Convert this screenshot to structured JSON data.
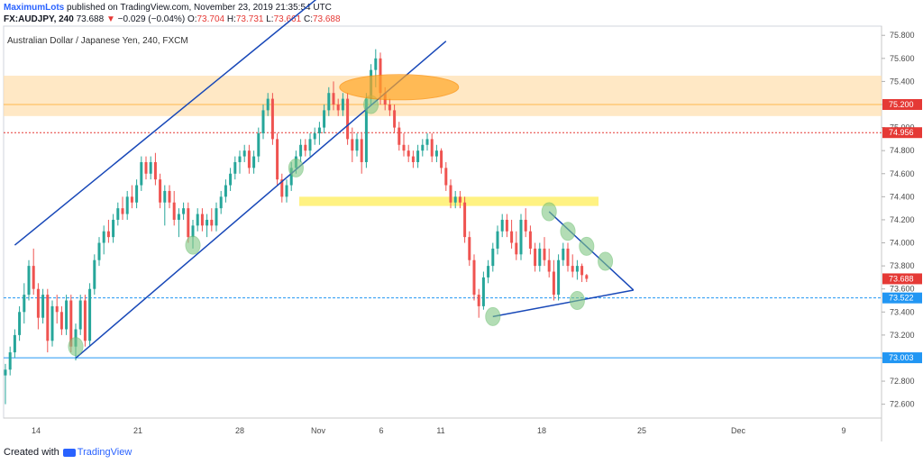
{
  "header": {
    "author": "MaximumLots",
    "published_text": "published on TradingView.com, November 23, 2019 21:35:54 UTC",
    "symbol": "FX:AUDJPY, 240",
    "last": "73.688",
    "change_arrow": "▼",
    "change": "−0.029 (−0.04%)",
    "o_label": "O:",
    "o": "73.704",
    "h_label": "H:",
    "h": "73.731",
    "l_label": "L:",
    "l": "73.661",
    "c_label": "C:",
    "c": "73.688"
  },
  "footer": {
    "created_with": "Created with",
    "brand": "TradingView"
  },
  "colors": {
    "up": "#26a69a",
    "down": "#ef5350",
    "trend": "#1848b8",
    "hline": "#2196f3",
    "red_line": "#e53935",
    "zone": "#ffe0b2",
    "support": "#ffee58",
    "ellipse_green": "#81c784",
    "ellipse_orange": "#ffa726"
  },
  "chart_data": {
    "type": "candlestick",
    "title": "Australian Dollar / Japanese Yen, 240, FXCM",
    "ylim": [
      72.48,
      75.88
    ],
    "x_ticks": [
      "14",
      "21",
      "28",
      "Nov",
      "6",
      "11",
      "18",
      "25",
      "Dec",
      "9"
    ],
    "y_ticks": [
      "72.600",
      "72.800",
      "73.000",
      "73.200",
      "73.400",
      "73.600",
      "73.800",
      "74.000",
      "74.200",
      "74.400",
      "74.600",
      "74.800",
      "75.000",
      "75.200",
      "75.400",
      "75.600",
      "75.800"
    ],
    "price_labels": [
      {
        "value": 75.2,
        "text": "75.200",
        "color": "#e53935"
      },
      {
        "value": 74.956,
        "text": "74.956",
        "color": "#e53935"
      },
      {
        "value": 73.688,
        "text": "73.688",
        "color": "#e53935"
      },
      {
        "value": 73.522,
        "text": "73.522",
        "color": "#2196f3"
      },
      {
        "value": 73.003,
        "text": "73.003",
        "color": "#2196f3"
      }
    ],
    "horizontal_lines": [
      {
        "value": 74.956,
        "style": "dotted",
        "color": "#e53935"
      },
      {
        "value": 73.522,
        "style": "dashed",
        "color": "#2196f3"
      },
      {
        "value": 73.003,
        "style": "solid",
        "color": "#2196f3"
      }
    ],
    "resistance_zone": [
      75.1,
      75.45
    ],
    "zone_midline": 75.2,
    "support_zone": [
      74.32,
      74.4
    ],
    "ohlc": [
      [
        72.85,
        72.95,
        72.6,
        72.9
      ],
      [
        72.9,
        73.1,
        72.85,
        73.05
      ],
      [
        73.05,
        73.25,
        73.0,
        73.2
      ],
      [
        73.2,
        73.45,
        73.15,
        73.4
      ],
      [
        73.4,
        73.65,
        73.3,
        73.55
      ],
      [
        73.55,
        73.85,
        73.5,
        73.8
      ],
      [
        73.8,
        73.95,
        73.55,
        73.6
      ],
      [
        73.6,
        73.65,
        73.25,
        73.35
      ],
      [
        73.35,
        73.6,
        73.3,
        73.55
      ],
      [
        73.55,
        73.6,
        73.05,
        73.15
      ],
      [
        73.15,
        73.5,
        73.1,
        73.45
      ],
      [
        73.45,
        73.55,
        73.3,
        73.4
      ],
      [
        73.4,
        73.45,
        73.2,
        73.25
      ],
      [
        73.25,
        73.55,
        73.2,
        73.5
      ],
      [
        73.5,
        73.55,
        73.05,
        73.1
      ],
      [
        73.1,
        73.3,
        72.98,
        73.25
      ],
      [
        73.25,
        73.55,
        73.2,
        73.5
      ],
      [
        73.5,
        73.55,
        73.1,
        73.15
      ],
      [
        73.15,
        73.65,
        73.1,
        73.6
      ],
      [
        73.6,
        73.9,
        73.55,
        73.85
      ],
      [
        73.85,
        74.05,
        73.8,
        74.0
      ],
      [
        74.0,
        74.15,
        73.9,
        74.1
      ],
      [
        74.1,
        74.2,
        74.0,
        74.05
      ],
      [
        74.05,
        74.25,
        74.0,
        74.2
      ],
      [
        74.2,
        74.35,
        74.15,
        74.3
      ],
      [
        74.3,
        74.4,
        74.2,
        74.25
      ],
      [
        74.25,
        74.45,
        74.2,
        74.4
      ],
      [
        74.4,
        74.5,
        74.3,
        74.35
      ],
      [
        74.35,
        74.55,
        74.3,
        74.5
      ],
      [
        74.5,
        74.75,
        74.45,
        74.7
      ],
      [
        74.7,
        74.75,
        74.55,
        74.6
      ],
      [
        74.6,
        74.75,
        74.55,
        74.7
      ],
      [
        74.7,
        74.78,
        74.5,
        74.55
      ],
      [
        74.55,
        74.6,
        74.3,
        74.35
      ],
      [
        74.35,
        74.5,
        74.15,
        74.45
      ],
      [
        74.45,
        74.5,
        74.3,
        74.35
      ],
      [
        74.35,
        74.45,
        74.15,
        74.2
      ],
      [
        74.2,
        74.3,
        74.05,
        74.25
      ],
      [
        74.25,
        74.35,
        74.2,
        74.3
      ],
      [
        74.3,
        74.35,
        74.0,
        74.05
      ],
      [
        74.05,
        74.2,
        73.95,
        74.15
      ],
      [
        74.15,
        74.3,
        74.1,
        74.25
      ],
      [
        74.25,
        74.3,
        74.1,
        74.15
      ],
      [
        74.15,
        74.25,
        74.05,
        74.2
      ],
      [
        74.2,
        74.3,
        74.1,
        74.15
      ],
      [
        74.15,
        74.35,
        74.1,
        74.3
      ],
      [
        74.3,
        74.45,
        74.25,
        74.4
      ],
      [
        74.4,
        74.55,
        74.35,
        74.5
      ],
      [
        74.5,
        74.65,
        74.45,
        74.6
      ],
      [
        74.6,
        74.75,
        74.55,
        74.7
      ],
      [
        74.7,
        74.8,
        74.6,
        74.75
      ],
      [
        74.75,
        74.85,
        74.7,
        74.8
      ],
      [
        74.8,
        74.85,
        74.6,
        74.65
      ],
      [
        74.65,
        74.8,
        74.6,
        74.75
      ],
      [
        74.75,
        75.0,
        74.7,
        74.95
      ],
      [
        74.95,
        75.2,
        74.9,
        75.15
      ],
      [
        75.15,
        75.3,
        75.1,
        75.25
      ],
      [
        75.25,
        75.3,
        74.85,
        74.9
      ],
      [
        74.9,
        74.95,
        74.5,
        74.55
      ],
      [
        74.55,
        74.6,
        74.35,
        74.4
      ],
      [
        74.4,
        74.55,
        74.35,
        74.5
      ],
      [
        74.5,
        74.7,
        74.45,
        74.65
      ],
      [
        74.65,
        74.8,
        74.6,
        74.75
      ],
      [
        74.75,
        74.9,
        74.7,
        74.85
      ],
      [
        74.85,
        74.9,
        74.75,
        74.8
      ],
      [
        74.8,
        74.95,
        74.75,
        74.9
      ],
      [
        74.9,
        75.0,
        74.85,
        74.95
      ],
      [
        74.95,
        75.05,
        74.85,
        75.0
      ],
      [
        75.0,
        75.2,
        74.95,
        75.15
      ],
      [
        75.15,
        75.35,
        75.1,
        75.3
      ],
      [
        75.3,
        75.4,
        75.15,
        75.2
      ],
      [
        75.2,
        75.25,
        75.1,
        75.15
      ],
      [
        75.15,
        75.3,
        75.1,
        75.25
      ],
      [
        75.25,
        75.3,
        74.85,
        74.9
      ],
      [
        74.9,
        75.0,
        74.7,
        74.8
      ],
      [
        74.8,
        74.95,
        74.75,
        74.9
      ],
      [
        74.9,
        74.95,
        74.6,
        74.7
      ],
      [
        74.7,
        75.3,
        74.65,
        75.25
      ],
      [
        75.25,
        75.55,
        75.2,
        75.5
      ],
      [
        75.5,
        75.68,
        75.35,
        75.6
      ],
      [
        75.6,
        75.65,
        75.2,
        75.3
      ],
      [
        75.3,
        75.35,
        75.15,
        75.2
      ],
      [
        75.2,
        75.25,
        75.1,
        75.15
      ],
      [
        75.15,
        75.2,
        74.95,
        75.0
      ],
      [
        75.0,
        75.05,
        74.8,
        74.85
      ],
      [
        74.85,
        74.95,
        74.75,
        74.8
      ],
      [
        74.8,
        74.85,
        74.7,
        74.75
      ],
      [
        74.75,
        74.8,
        74.65,
        74.7
      ],
      [
        74.7,
        74.85,
        74.65,
        74.8
      ],
      [
        74.8,
        74.9,
        74.75,
        74.85
      ],
      [
        74.85,
        74.95,
        74.8,
        74.9
      ],
      [
        74.9,
        74.95,
        74.7,
        74.75
      ],
      [
        74.75,
        74.85,
        74.7,
        74.8
      ],
      [
        74.8,
        74.82,
        74.6,
        74.65
      ],
      [
        74.65,
        74.7,
        74.45,
        74.5
      ],
      [
        74.5,
        74.55,
        74.3,
        74.35
      ],
      [
        74.35,
        74.45,
        74.3,
        74.4
      ],
      [
        74.4,
        74.45,
        74.3,
        74.35
      ],
      [
        74.35,
        74.4,
        74.0,
        74.05
      ],
      [
        74.05,
        74.1,
        73.8,
        73.85
      ],
      [
        73.85,
        73.9,
        73.5,
        73.55
      ],
      [
        73.55,
        73.6,
        73.35,
        73.45
      ],
      [
        73.45,
        73.75,
        73.42,
        73.7
      ],
      [
        73.7,
        73.85,
        73.65,
        73.8
      ],
      [
        73.8,
        74.0,
        73.75,
        73.95
      ],
      [
        73.95,
        74.15,
        73.9,
        74.1
      ],
      [
        74.1,
        74.25,
        74.05,
        74.2
      ],
      [
        74.2,
        74.25,
        74.05,
        74.1
      ],
      [
        74.1,
        74.2,
        73.95,
        74.0
      ],
      [
        74.0,
        74.1,
        73.85,
        73.9
      ],
      [
        73.9,
        74.25,
        73.85,
        74.2
      ],
      [
        74.2,
        74.3,
        74.05,
        74.1
      ],
      [
        74.1,
        74.15,
        73.9,
        73.95
      ],
      [
        73.95,
        74.0,
        73.75,
        73.8
      ],
      [
        73.8,
        74.0,
        73.75,
        73.95
      ],
      [
        73.95,
        74.05,
        73.8,
        73.85
      ],
      [
        73.85,
        73.95,
        73.7,
        73.75
      ],
      [
        73.75,
        73.85,
        73.5,
        73.55
      ],
      [
        73.55,
        73.9,
        73.5,
        73.85
      ],
      [
        73.85,
        74.0,
        73.8,
        73.95
      ],
      [
        73.95,
        74.0,
        73.75,
        73.8
      ],
      [
        73.8,
        73.9,
        73.7,
        73.75
      ],
      [
        73.75,
        73.85,
        73.68,
        73.8
      ],
      [
        73.8,
        73.82,
        73.66,
        73.72
      ],
      [
        73.72,
        73.73,
        73.66,
        73.688
      ]
    ],
    "trendlines": [
      {
        "from": [
          15,
          73.0
        ],
        "to": [
          94,
          75.75
        ]
      },
      {
        "from": [
          2,
          73.98
        ],
        "to": [
          78,
          76.5
        ]
      },
      {
        "from": [
          104,
          73.36
        ],
        "to": [
          134,
          73.59
        ]
      },
      {
        "from": [
          116,
          74.27
        ],
        "to": [
          134,
          73.59
        ]
      }
    ],
    "ellipses": [
      {
        "color": "green",
        "at": [
          15,
          73.1
        ]
      },
      {
        "color": "green",
        "at": [
          40,
          73.98
        ]
      },
      {
        "color": "green",
        "at": [
          62,
          74.65
        ]
      },
      {
        "color": "green",
        "at": [
          78,
          75.2
        ]
      },
      {
        "color": "orange",
        "at": [
          84,
          75.35
        ]
      },
      {
        "color": "green",
        "at": [
          104,
          73.36
        ]
      },
      {
        "color": "green",
        "at": [
          116,
          74.27
        ]
      },
      {
        "color": "green",
        "at": [
          120,
          74.1
        ]
      },
      {
        "color": "green",
        "at": [
          124,
          73.97
        ]
      },
      {
        "color": "green",
        "at": [
          128,
          73.84
        ]
      },
      {
        "color": "green",
        "at": [
          122,
          73.5
        ]
      }
    ]
  }
}
